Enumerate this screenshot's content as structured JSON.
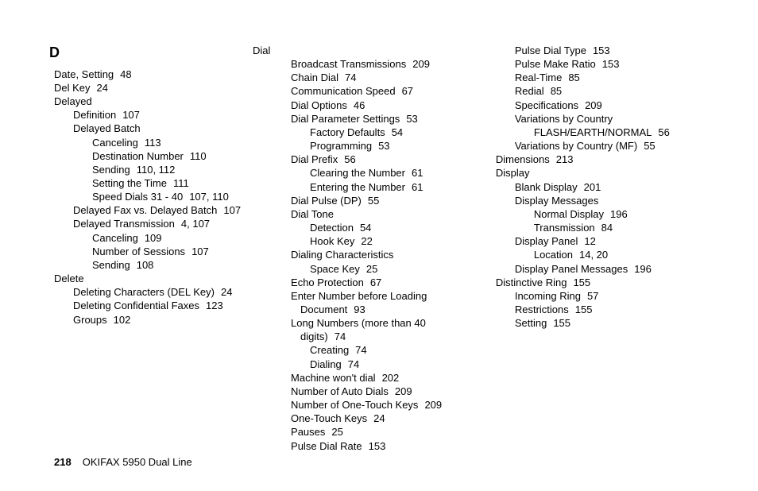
{
  "section_letter": "D",
  "footer": {
    "page_number": "218",
    "title": "OKIFAX 5950 Dual Line"
  },
  "col1": [
    {
      "l": 0,
      "t": "Date, Setting",
      "p": "48"
    },
    {
      "l": 0,
      "t": "Del Key",
      "p": "24"
    },
    {
      "l": 0,
      "t": "Delayed"
    },
    {
      "l": 1,
      "t": "Definition",
      "p": "107"
    },
    {
      "l": 1,
      "t": "Delayed Batch"
    },
    {
      "l": 2,
      "t": "Canceling",
      "p": "113"
    },
    {
      "l": 2,
      "t": "Destination Number",
      "p": "110"
    },
    {
      "l": 2,
      "t": "Sending",
      "p": "110,  112"
    },
    {
      "l": 2,
      "t": "Setting the Time",
      "p": "111"
    },
    {
      "l": 2,
      "t": "Speed Dials 31 - 40",
      "p": "107,  110"
    },
    {
      "l": 1,
      "t": "Delayed Fax vs. Delayed Batch",
      "p": "107"
    },
    {
      "l": 1,
      "t": "Delayed Transmission",
      "p": "4,  107"
    },
    {
      "l": 2,
      "t": "Canceling",
      "p": "109"
    },
    {
      "l": 2,
      "t": "Number of Sessions",
      "p": "107"
    },
    {
      "l": 2,
      "t": "Sending",
      "p": "108"
    },
    {
      "l": 0,
      "t": "Delete"
    },
    {
      "l": 1,
      "t": "Deleting Characters (DEL Key)",
      "p": "24"
    },
    {
      "l": 1,
      "t": "Deleting Confidential Faxes",
      "p": "123"
    },
    {
      "l": 1,
      "t": "Groups",
      "p": "102"
    }
  ],
  "col2": [
    {
      "l": -1,
      "t": "Dial"
    },
    {
      "l": 1,
      "t": "Broadcast Transmissions",
      "p": "209"
    },
    {
      "l": 1,
      "t": "Chain Dial",
      "p": "74"
    },
    {
      "l": 1,
      "t": "Communication Speed",
      "p": "67"
    },
    {
      "l": 1,
      "t": "Dial Options",
      "p": "46"
    },
    {
      "l": 1,
      "t": "Dial Parameter Settings",
      "p": "53"
    },
    {
      "l": 2,
      "t": "Factory Defaults",
      "p": "54"
    },
    {
      "l": 2,
      "t": "Programming",
      "p": "53"
    },
    {
      "l": 1,
      "t": "Dial Prefix",
      "p": "56"
    },
    {
      "l": 2,
      "t": "Clearing the Number",
      "p": "61"
    },
    {
      "l": 2,
      "t": "Entering the Number",
      "p": "61"
    },
    {
      "l": 1,
      "t": "Dial Pulse (DP)",
      "p": "55"
    },
    {
      "l": 1,
      "t": "Dial Tone"
    },
    {
      "l": 2,
      "t": "Detection",
      "p": "54"
    },
    {
      "l": 2,
      "t": "Hook Key",
      "p": "22"
    },
    {
      "l": 1,
      "t": "Dialing Characteristics"
    },
    {
      "l": 2,
      "t": "Space Key",
      "p": "25"
    },
    {
      "l": 1,
      "t": "Echo Protection",
      "p": "67"
    },
    {
      "l": 1,
      "t": "Enter Number before Loading",
      "wrap": "Document",
      "p": "93"
    },
    {
      "l": 1,
      "t": "Long Numbers (more than 40",
      "wrap": "digits)",
      "p": "74"
    },
    {
      "l": 2,
      "t": "Creating",
      "p": "74"
    },
    {
      "l": 2,
      "t": "Dialing",
      "p": "74"
    },
    {
      "l": 1,
      "t": "Machine won't dial",
      "p": "202"
    },
    {
      "l": 1,
      "t": "Number of Auto Dials",
      "p": "209"
    },
    {
      "l": 1,
      "t": "Number of One-Touch Keys",
      "p": "209"
    },
    {
      "l": 1,
      "t": "One-Touch Keys",
      "p": "24"
    },
    {
      "l": 1,
      "t": "Pauses",
      "p": "25"
    },
    {
      "l": 1,
      "t": "Pulse Dial Rate",
      "p": "153"
    }
  ],
  "col3": [
    {
      "l": 1,
      "t": "Pulse Dial Type",
      "p": "153"
    },
    {
      "l": 1,
      "t": "Pulse Make Ratio",
      "p": "153"
    },
    {
      "l": 1,
      "t": "Real-Time",
      "p": "85"
    },
    {
      "l": 1,
      "t": "Redial",
      "p": "85"
    },
    {
      "l": 1,
      "t": "Specifications",
      "p": "209"
    },
    {
      "l": 1,
      "t": "Variations by Country"
    },
    {
      "l": 2,
      "t": "FLASH/EARTH/NORMAL",
      "p": "56"
    },
    {
      "l": 1,
      "t": "Variations by Country (MF)",
      "p": "55"
    },
    {
      "l": 0,
      "t": "Dimensions",
      "p": "213"
    },
    {
      "l": 0,
      "t": "Display"
    },
    {
      "l": 1,
      "t": "Blank Display",
      "p": "201"
    },
    {
      "l": 1,
      "t": "Display Messages"
    },
    {
      "l": 2,
      "t": "Normal Display",
      "p": "196"
    },
    {
      "l": 2,
      "t": "Transmission",
      "p": "84"
    },
    {
      "l": 1,
      "t": "Display Panel",
      "p": "12"
    },
    {
      "l": 2,
      "t": "Location",
      "p": "14,  20"
    },
    {
      "l": 1,
      "t": "Display Panel Messages",
      "p": "196"
    },
    {
      "l": 0,
      "t": "Distinctive Ring",
      "p": "155"
    },
    {
      "l": 1,
      "t": "Incoming Ring",
      "p": "57"
    },
    {
      "l": 1,
      "t": "Restrictions",
      "p": "155"
    },
    {
      "l": 1,
      "t": "Setting",
      "p": "155"
    }
  ]
}
